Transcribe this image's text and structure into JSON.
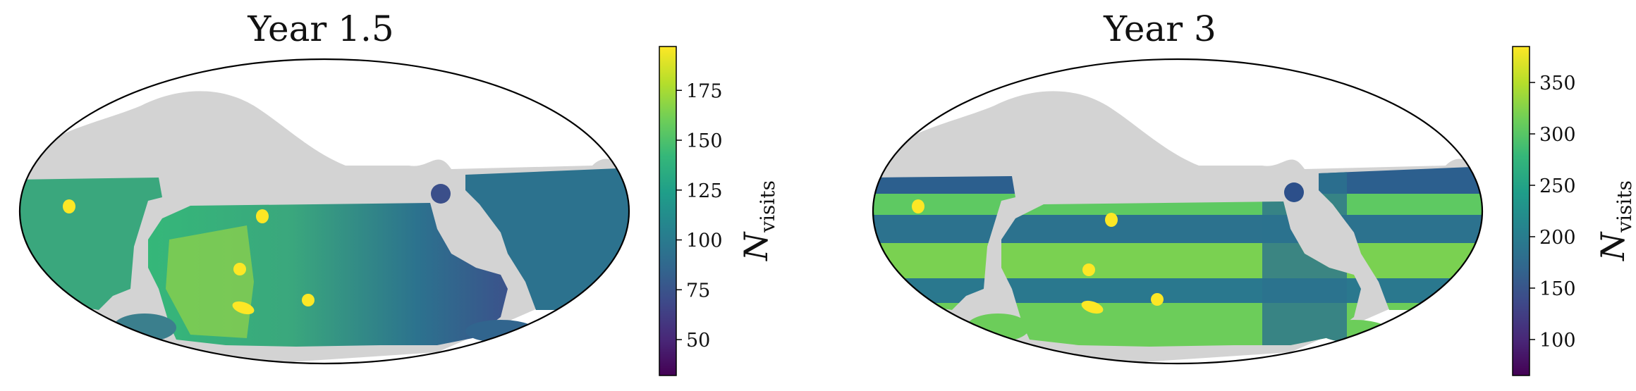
{
  "figure": {
    "colormap": "viridis",
    "footprint_color": "#d3d3d3",
    "hotspot_color": "#fde725"
  },
  "chart_data": [
    {
      "type": "heatmap",
      "projection": "mollweide",
      "title": "Year 1.5",
      "colorbar": {
        "label_main": "N",
        "label_sub": "visits",
        "range": [
          32,
          197
        ],
        "ticks": [
          50,
          75,
          100,
          125,
          150,
          175
        ],
        "tick_labels": [
          "50",
          "75",
          "100",
          "125",
          "150",
          "175"
        ]
      }
    },
    {
      "type": "heatmap",
      "projection": "mollweide",
      "title": "Year 3",
      "colorbar": {
        "label_main": "N",
        "label_sub": "visits",
        "range": [
          65,
          385
        ],
        "ticks": [
          100,
          150,
          200,
          250,
          300,
          350
        ],
        "tick_labels": [
          "100",
          "150",
          "200",
          "250",
          "300",
          "350"
        ]
      }
    }
  ]
}
